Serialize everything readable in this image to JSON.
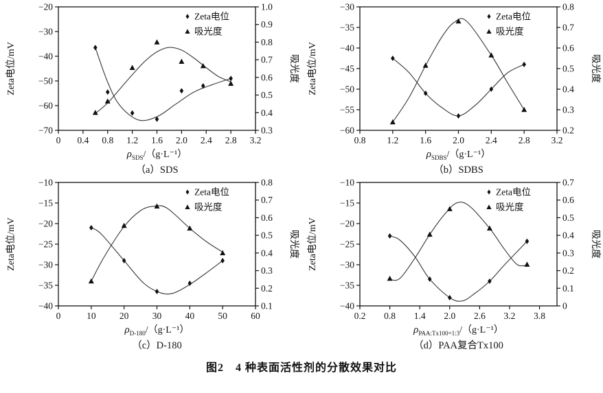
{
  "figure": {
    "caption": "图2　4 种表面活性剂的分散效果对比"
  },
  "axis_labels": {
    "left": "Zeta电位/mV",
    "right": "吸光度"
  },
  "legend": {
    "zeta": "Zeta电位",
    "absorbance": "吸光度"
  },
  "colors": {
    "ink": "#111111",
    "curve": "#3c3c3c",
    "background": "#ffffff"
  },
  "chart_data": [
    {
      "type": "line",
      "sub_caption": "（a）SDS",
      "xlabel": {
        "symbol": "ρ",
        "subscript": "SDS",
        "unit": "/（g·L⁻¹）"
      },
      "x_axis": {
        "min": 0,
        "max": 3.2,
        "tick_values": [
          0,
          0.4,
          0.8,
          1.2,
          1.6,
          2.0,
          2.4,
          2.8,
          3.2
        ],
        "tick_labels": [
          "0",
          "0.4",
          "0.8",
          "1.2",
          "1.6",
          "2.0",
          "2.4",
          "2.8",
          "3.2"
        ]
      },
      "left_axis": {
        "min": -70,
        "max": -20,
        "tick_values": [
          -20,
          -30,
          -40,
          -50,
          -60,
          -70
        ],
        "tick_labels": [
          "−20",
          "−30",
          "−40",
          "−50",
          "−60",
          "−70"
        ]
      },
      "right_axis": {
        "min": 0.3,
        "max": 1.0,
        "tick_values": [
          1.0,
          0.9,
          0.8,
          0.7,
          0.6,
          0.5,
          0.4,
          0.3
        ],
        "tick_labels": [
          "1.0",
          "0.9",
          "0.8",
          "0.7",
          "0.6",
          "0.5",
          "0.4",
          "0.3"
        ]
      },
      "series": [
        {
          "name": "Zeta电位",
          "axis": "left",
          "marker": "diamond",
          "points": [
            [
              0.6,
              -36.5
            ],
            [
              0.8,
              -54.5
            ],
            [
              1.2,
              -63
            ],
            [
              1.6,
              -65.5
            ],
            [
              2.0,
              -54
            ],
            [
              2.35,
              -52
            ],
            [
              2.8,
              -49
            ]
          ],
          "curve": [
            [
              0.6,
              -36.5
            ],
            [
              0.8,
              -50.5
            ],
            [
              1.0,
              -60
            ],
            [
              1.3,
              -65.8
            ],
            [
              1.6,
              -64.5
            ],
            [
              1.9,
              -59.5
            ],
            [
              2.2,
              -54.5
            ],
            [
              2.5,
              -51.5
            ],
            [
              2.8,
              -49
            ]
          ]
        },
        {
          "name": "吸光度",
          "axis": "right",
          "marker": "triangle",
          "points": [
            [
              0.6,
              0.4
            ],
            [
              0.8,
              0.465
            ],
            [
              1.2,
              0.655
            ],
            [
              1.6,
              0.8
            ],
            [
              2.0,
              0.69
            ],
            [
              2.35,
              0.665
            ],
            [
              2.8,
              0.565
            ]
          ],
          "curve": [
            [
              0.6,
              0.395
            ],
            [
              0.8,
              0.455
            ],
            [
              1.0,
              0.535
            ],
            [
              1.2,
              0.615
            ],
            [
              1.4,
              0.69
            ],
            [
              1.6,
              0.745
            ],
            [
              1.8,
              0.77
            ],
            [
              2.0,
              0.755
            ],
            [
              2.2,
              0.71
            ],
            [
              2.4,
              0.655
            ],
            [
              2.6,
              0.605
            ],
            [
              2.8,
              0.575
            ]
          ]
        }
      ]
    },
    {
      "type": "line",
      "sub_caption": "（b）SDBS",
      "xlabel": {
        "symbol": "ρ",
        "subscript": "SDBS",
        "unit": "/（g·L⁻¹）"
      },
      "x_axis": {
        "min": 0.8,
        "max": 3.2,
        "tick_values": [
          0.8,
          1.2,
          1.6,
          2.0,
          2.4,
          2.8,
          3.2
        ],
        "tick_labels": [
          "0.8",
          "1.2",
          "1.6",
          "2.0",
          "2.4",
          "2.8",
          "3.2"
        ]
      },
      "left_axis": {
        "min": -60,
        "max": -30,
        "tick_values": [
          -30,
          -35,
          -40,
          -45,
          -50,
          -55,
          -60
        ],
        "tick_labels": [
          "−30",
          "−35",
          "−40",
          "−45",
          "−50",
          "−55",
          "−60"
        ]
      },
      "right_axis": {
        "min": 0.2,
        "max": 0.8,
        "tick_values": [
          0.8,
          0.7,
          0.6,
          0.5,
          0.4,
          0.3,
          0.2
        ],
        "tick_labels": [
          "0.8",
          "0.7",
          "0.6",
          "0.5",
          "0.4",
          "0.3",
          "0.2"
        ]
      },
      "series": [
        {
          "name": "Zeta电位",
          "axis": "left",
          "marker": "diamond",
          "points": [
            [
              1.2,
              -42.5
            ],
            [
              1.6,
              -51
            ],
            [
              2.0,
              -56.5
            ],
            [
              2.4,
              -50
            ],
            [
              2.8,
              -44
            ]
          ],
          "curve": [
            [
              1.2,
              -42.5
            ],
            [
              1.4,
              -46
            ],
            [
              1.6,
              -51
            ],
            [
              1.8,
              -54.5
            ],
            [
              2.0,
              -56.5
            ],
            [
              2.2,
              -54
            ],
            [
              2.4,
              -50
            ],
            [
              2.6,
              -46
            ],
            [
              2.8,
              -44
            ]
          ]
        },
        {
          "name": "吸光度",
          "axis": "right",
          "marker": "triangle",
          "points": [
            [
              1.2,
              0.24
            ],
            [
              1.6,
              0.515
            ],
            [
              2.0,
              0.73
            ],
            [
              2.4,
              0.565
            ],
            [
              2.8,
              0.3
            ]
          ],
          "curve": [
            [
              1.2,
              0.24
            ],
            [
              1.4,
              0.36
            ],
            [
              1.6,
              0.515
            ],
            [
              1.8,
              0.655
            ],
            [
              1.95,
              0.725
            ],
            [
              2.1,
              0.73
            ],
            [
              2.4,
              0.565
            ],
            [
              2.6,
              0.43
            ],
            [
              2.8,
              0.3
            ]
          ]
        }
      ]
    },
    {
      "type": "line",
      "sub_caption": "（c）D-180",
      "xlabel": {
        "symbol": "ρ",
        "subscript": "D-180",
        "unit": "/（g·L⁻¹）"
      },
      "x_axis": {
        "min": 0,
        "max": 60,
        "tick_values": [
          0,
          10,
          20,
          30,
          40,
          50,
          60
        ],
        "tick_labels": [
          "0",
          "10",
          "20",
          "30",
          "40",
          "50",
          "60"
        ]
      },
      "left_axis": {
        "min": -40,
        "max": -10,
        "tick_values": [
          -10,
          -15,
          -20,
          -25,
          -30,
          -35,
          -40
        ],
        "tick_labels": [
          "−10",
          "−15",
          "−20",
          "−25",
          "−30",
          "−35",
          "−40"
        ]
      },
      "right_axis": {
        "min": 0.1,
        "max": 0.8,
        "tick_values": [
          0.8,
          0.7,
          0.6,
          0.5,
          0.4,
          0.3,
          0.2,
          0.1
        ],
        "tick_labels": [
          "0.8",
          "0.7",
          "0.6",
          "0.5",
          "0.4",
          "0.3",
          "0.2",
          "0.1"
        ]
      },
      "series": [
        {
          "name": "Zeta电位",
          "axis": "left",
          "marker": "diamond",
          "points": [
            [
              10,
              -21
            ],
            [
              20,
              -29
            ],
            [
              30,
              -36.5
            ],
            [
              40,
              -34.5
            ],
            [
              50,
              -29
            ]
          ],
          "curve": [
            [
              10,
              -21
            ],
            [
              13,
              -22.5
            ],
            [
              20,
              -29
            ],
            [
              26,
              -34.5
            ],
            [
              31,
              -36.8
            ],
            [
              35,
              -36.9
            ],
            [
              40,
              -34.8
            ],
            [
              45,
              -32
            ],
            [
              50,
              -29
            ]
          ]
        },
        {
          "name": "吸光度",
          "axis": "right",
          "marker": "triangle",
          "points": [
            [
              10,
              0.24
            ],
            [
              20,
              0.555
            ],
            [
              30,
              0.665
            ],
            [
              40,
              0.54
            ],
            [
              50,
              0.4
            ]
          ],
          "curve": [
            [
              10,
              0.24
            ],
            [
              14,
              0.38
            ],
            [
              20,
              0.55
            ],
            [
              25,
              0.64
            ],
            [
              29,
              0.665
            ],
            [
              33,
              0.655
            ],
            [
              40,
              0.54
            ],
            [
              45,
              0.465
            ],
            [
              50,
              0.405
            ]
          ]
        }
      ]
    },
    {
      "type": "line",
      "sub_caption": "（d）PAA复合Tx100",
      "xlabel": {
        "symbol": "ρ",
        "subscript": "PAA:Tx100=1:3",
        "unit": "/（g·L⁻¹）"
      },
      "x_axis": {
        "min": 0.2,
        "max": 4.15,
        "tick_values": [
          0.2,
          0.8,
          1.4,
          2.0,
          2.6,
          3.2,
          3.8
        ],
        "tick_labels": [
          "0.2",
          "0.8",
          "1.4",
          "2.0",
          "2.6",
          "3.2",
          "3.8"
        ]
      },
      "left_axis": {
        "min": -40,
        "max": -10,
        "tick_values": [
          -10,
          -15,
          -20,
          -25,
          -30,
          -35,
          -40
        ],
        "tick_labels": [
          "−10",
          "−15",
          "−20",
          "−25",
          "−30",
          "−35",
          "−40"
        ]
      },
      "right_axis": {
        "min": 0,
        "max": 0.7,
        "tick_values": [
          0.7,
          0.6,
          0.5,
          0.4,
          0.3,
          0.2,
          0.1,
          0
        ],
        "tick_labels": [
          "0.7",
          "0.6",
          "0.5",
          "0.4",
          "0.3",
          "0.2",
          "0.1",
          "0"
        ]
      },
      "series": [
        {
          "name": "Zeta电位",
          "axis": "left",
          "marker": "diamond",
          "points": [
            [
              0.8,
              -23
            ],
            [
              1.6,
              -33.5
            ],
            [
              2.0,
              -38
            ],
            [
              2.8,
              -34
            ],
            [
              3.55,
              -24.3
            ]
          ],
          "curve": [
            [
              0.8,
              -23
            ],
            [
              1.0,
              -24
            ],
            [
              1.3,
              -28
            ],
            [
              1.6,
              -33.5
            ],
            [
              2.0,
              -38
            ],
            [
              2.25,
              -38.8
            ],
            [
              2.5,
              -37
            ],
            [
              2.8,
              -34
            ],
            [
              3.1,
              -30
            ],
            [
              3.55,
              -24.3
            ]
          ]
        },
        {
          "name": "吸光度",
          "axis": "right",
          "marker": "triangle",
          "points": [
            [
              0.8,
              0.155
            ],
            [
              1.6,
              0.405
            ],
            [
              2.0,
              0.55
            ],
            [
              2.8,
              0.44
            ],
            [
              3.55,
              0.235
            ]
          ],
          "curve": [
            [
              0.8,
              0.15
            ],
            [
              1.0,
              0.155
            ],
            [
              1.3,
              0.27
            ],
            [
              1.6,
              0.405
            ],
            [
              1.9,
              0.52
            ],
            [
              2.15,
              0.585
            ],
            [
              2.4,
              0.565
            ],
            [
              2.8,
              0.44
            ],
            [
              3.1,
              0.32
            ],
            [
              3.35,
              0.235
            ],
            [
              3.55,
              0.23
            ]
          ]
        }
      ]
    }
  ]
}
